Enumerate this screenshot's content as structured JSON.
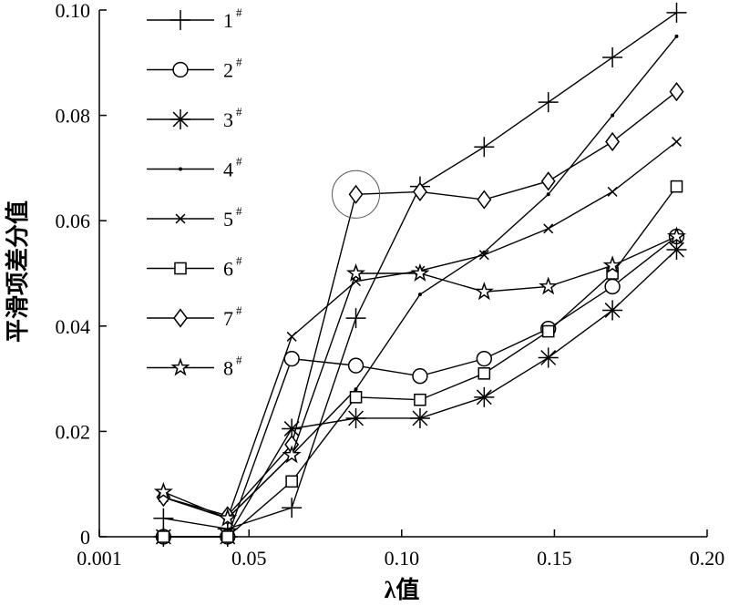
{
  "chart_data": {
    "type": "line",
    "xlabel": "λ值",
    "ylabel": "平滑项差分值",
    "xlim": [
      0.001,
      0.2
    ],
    "ylim": [
      0,
      0.1
    ],
    "x_tick_labels": [
      "0.001",
      "0.05",
      "0.10",
      "0.15",
      "0.20"
    ],
    "y_tick_labels": [
      "0",
      "0.02",
      "0.04",
      "0.06",
      "0.08",
      "0.10"
    ],
    "x_tick_values": [
      0.001,
      0.05,
      0.1,
      0.15,
      0.2
    ],
    "y_tick_values": [
      0,
      0.02,
      0.04,
      0.06,
      0.08,
      0.1
    ],
    "x": [
      0.022,
      0.043,
      0.064,
      0.085,
      0.106,
      0.127,
      0.148,
      0.169,
      0.19
    ],
    "legend_position": "top-left",
    "grid": false,
    "series": [
      {
        "name": "1",
        "marker": "plus",
        "values": [
          0.0035,
          0.0015,
          0.0055,
          0.0415,
          0.0665,
          0.074,
          0.0825,
          0.091,
          0.0995
        ]
      },
      {
        "name": "2",
        "marker": "circle",
        "values": [
          0.0,
          0.0,
          0.0338,
          0.0325,
          0.0305,
          0.0338,
          0.0395,
          0.0475,
          0.057
        ]
      },
      {
        "name": "3",
        "marker": "asterisk",
        "values": [
          0.0,
          0.0,
          0.0205,
          0.0225,
          0.0225,
          0.0265,
          0.034,
          0.043,
          0.0545
        ]
      },
      {
        "name": "4",
        "marker": "dot",
        "values": [
          0.0075,
          0.0035,
          0.0155,
          0.028,
          0.046,
          0.054,
          0.065,
          0.08,
          0.095
        ]
      },
      {
        "name": "5",
        "marker": "x",
        "values": [
          0.0075,
          0.0035,
          0.038,
          0.0485,
          0.0505,
          0.0535,
          0.0585,
          0.0655,
          0.075
        ]
      },
      {
        "name": "6",
        "marker": "square",
        "values": [
          0.0,
          0.0,
          0.0105,
          0.0265,
          0.026,
          0.031,
          0.039,
          0.05,
          0.0665
        ]
      },
      {
        "name": "7",
        "marker": "diamond",
        "values": [
          0.0075,
          0.004,
          0.0175,
          0.065,
          0.0655,
          0.064,
          0.0675,
          0.075,
          0.0845
        ]
      },
      {
        "name": "8",
        "marker": "star",
        "values": [
          0.0085,
          0.0035,
          0.0155,
          0.05,
          0.05,
          0.0465,
          0.0475,
          0.0515,
          0.057
        ]
      }
    ],
    "legend_suffix": "#",
    "highlight": {
      "series": "7",
      "x": 0.085,
      "y": 0.065
    }
  }
}
